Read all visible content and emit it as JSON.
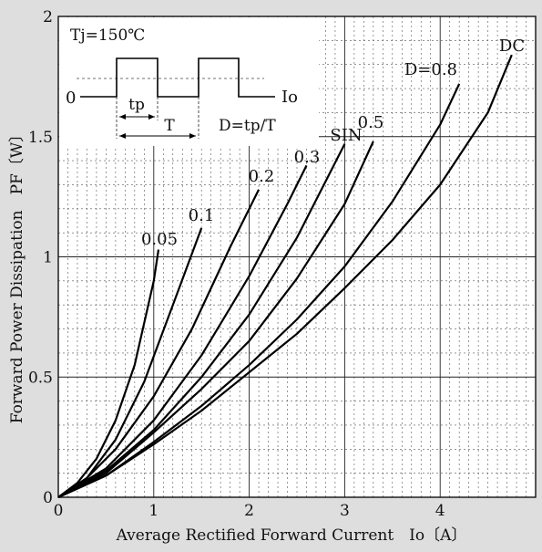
{
  "chart_data": {
    "type": "line",
    "xlabel": "Average Rectified Forward Current　Io〔A〕",
    "ylabel": "Forward Power Dissipation　PF〔W〕",
    "xlim": [
      0,
      5
    ],
    "ylim": [
      0,
      2
    ],
    "x_ticks": [
      "0",
      "1",
      "2",
      "3",
      "4"
    ],
    "y_ticks": [
      "0",
      "0.5",
      "1",
      "1.5",
      "2"
    ],
    "grid": "major solid, minor dashed",
    "series": [
      {
        "name": "0.05",
        "x": [
          0,
          0.2,
          0.4,
          0.6,
          0.8,
          1.0,
          1.05
        ],
        "y": [
          0,
          0.06,
          0.16,
          0.32,
          0.55,
          0.9,
          1.03
        ]
      },
      {
        "name": "0.1",
        "x": [
          0,
          0.3,
          0.6,
          0.9,
          1.2,
          1.5
        ],
        "y": [
          0,
          0.08,
          0.24,
          0.48,
          0.8,
          1.12
        ]
      },
      {
        "name": "0.2",
        "x": [
          0,
          0.3,
          0.6,
          1.0,
          1.4,
          1.8,
          2.1
        ],
        "y": [
          0,
          0.08,
          0.2,
          0.42,
          0.7,
          1.04,
          1.28
        ]
      },
      {
        "name": "0.3",
        "x": [
          0,
          0.5,
          1.0,
          1.5,
          2.0,
          2.4,
          2.6
        ],
        "y": [
          0,
          0.12,
          0.32,
          0.59,
          0.92,
          1.22,
          1.38
        ]
      },
      {
        "name": "SIN",
        "x": [
          0,
          0.5,
          1.0,
          1.5,
          2.0,
          2.5,
          3.0
        ],
        "y": [
          0,
          0.11,
          0.28,
          0.5,
          0.76,
          1.08,
          1.47
        ]
      },
      {
        "name": "0.5",
        "x": [
          0,
          0.5,
          1.0,
          1.5,
          2.0,
          2.5,
          3.0,
          3.3
        ],
        "y": [
          0,
          0.1,
          0.27,
          0.45,
          0.65,
          0.91,
          1.22,
          1.48
        ]
      },
      {
        "name": "D=0.8",
        "x": [
          0,
          0.5,
          1.0,
          1.5,
          2.0,
          2.5,
          3.0,
          3.5,
          4.0,
          4.2
        ],
        "y": [
          0,
          0.09,
          0.23,
          0.38,
          0.55,
          0.74,
          0.96,
          1.23,
          1.55,
          1.72
        ]
      },
      {
        "name": "DC",
        "x": [
          0,
          0.5,
          1.0,
          1.5,
          2.0,
          2.5,
          3.0,
          3.5,
          4.0,
          4.5,
          4.75
        ],
        "y": [
          0,
          0.09,
          0.22,
          0.36,
          0.52,
          0.68,
          0.87,
          1.07,
          1.3,
          1.6,
          1.84
        ]
      }
    ],
    "inset": {
      "condition": "Tj=150℃",
      "zero_label": "0",
      "io_label": "Io",
      "tp_label": "tp",
      "t_label": "T",
      "duty_label": "D=tp/T"
    }
  }
}
